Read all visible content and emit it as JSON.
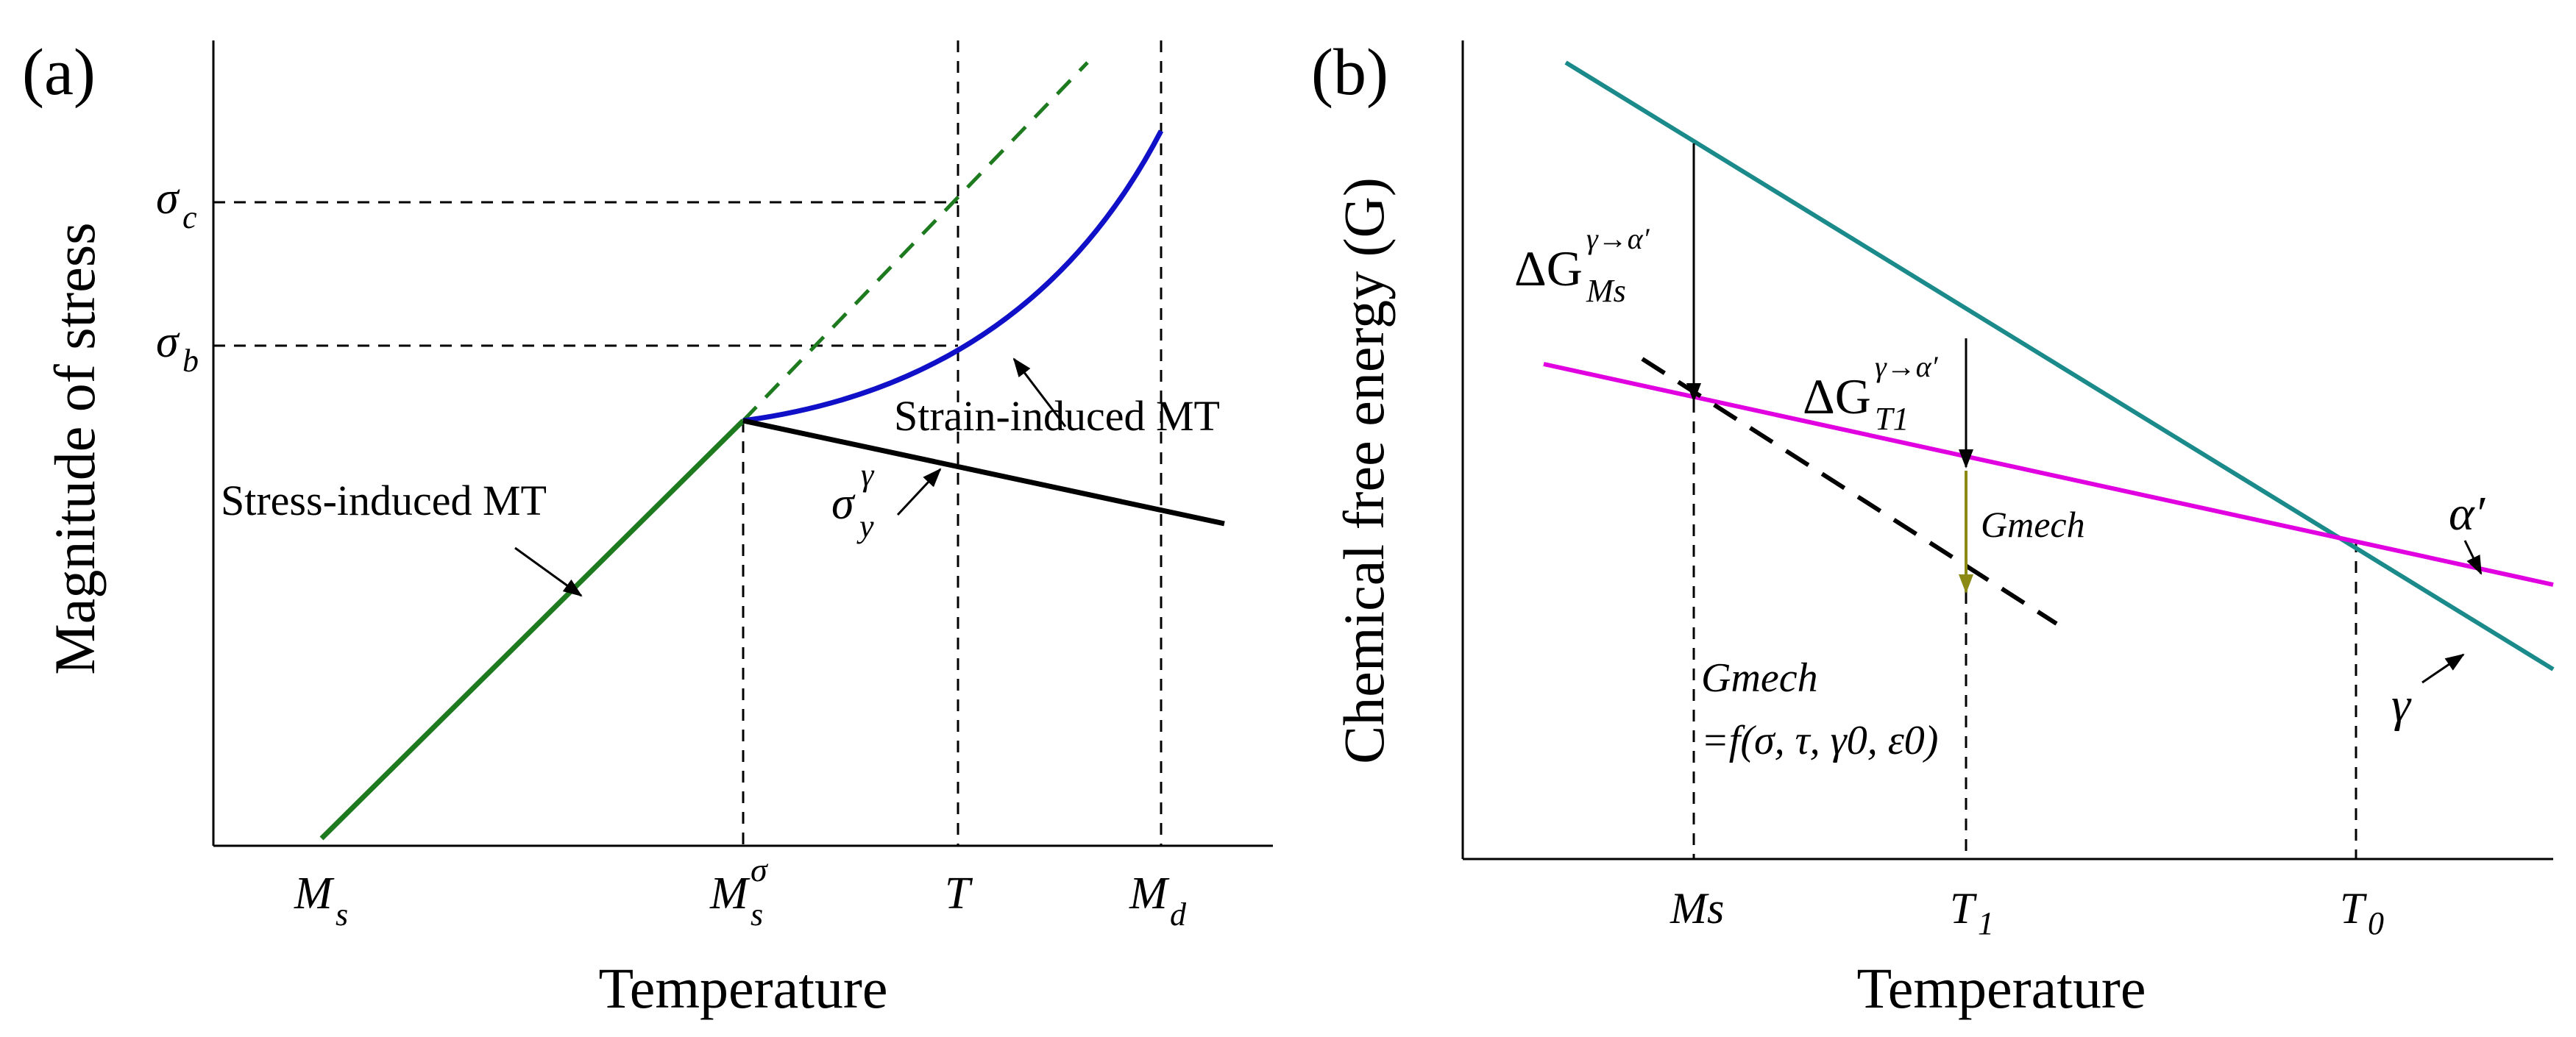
{
  "colors": {
    "green": "#1e7a1e",
    "blue": "#1010c8",
    "black": "#000000",
    "teal": "#1b8a8a",
    "magenta": "#e000e0",
    "olive": "#8a8a14"
  },
  "panel_a": {
    "label": "(a)",
    "ylabel": "Magnitude of stress",
    "xlabel": "Temperature",
    "ticks": {
      "ms": {
        "main": "M",
        "sub": "s"
      },
      "ms_sigma": {
        "main": "M",
        "sup": "σ",
        "sub": "s"
      },
      "t": {
        "main": "T"
      },
      "md": {
        "main": "M",
        "sub": "d"
      }
    },
    "stress_levels": {
      "sigma_c": {
        "main": "σ",
        "sub": "c"
      },
      "sigma_b": {
        "main": "σ",
        "sub": "b"
      }
    },
    "annotations": {
      "strain_induced": "Strain-induced MT",
      "stress_induced": "Stress-induced MT",
      "sigma_y": {
        "main": "σ",
        "sup": "γ",
        "sub": "y"
      }
    }
  },
  "panel_b": {
    "label": "(b)",
    "ylabel": "Chemical free energy (G)",
    "xlabel": "Temperature",
    "ticks": {
      "ms": "Ms",
      "t1": {
        "main": "T",
        "sub": "1"
      },
      "t0": {
        "main": "T",
        "sub": "0"
      }
    },
    "annotations": {
      "dg_ms": {
        "prefix": "ΔG",
        "sup": "γ→α′",
        "sub": "Ms"
      },
      "dg_t1": {
        "prefix": "ΔG",
        "sup": "γ→α′",
        "sub": "T1"
      },
      "g_mech_arrow": "Gmech",
      "g_mech_formula_line1": "Gmech",
      "g_mech_formula_line2": "=f(σ, τ, γ0, ε0)",
      "alpha_prime": "α′",
      "gamma": "γ"
    }
  }
}
